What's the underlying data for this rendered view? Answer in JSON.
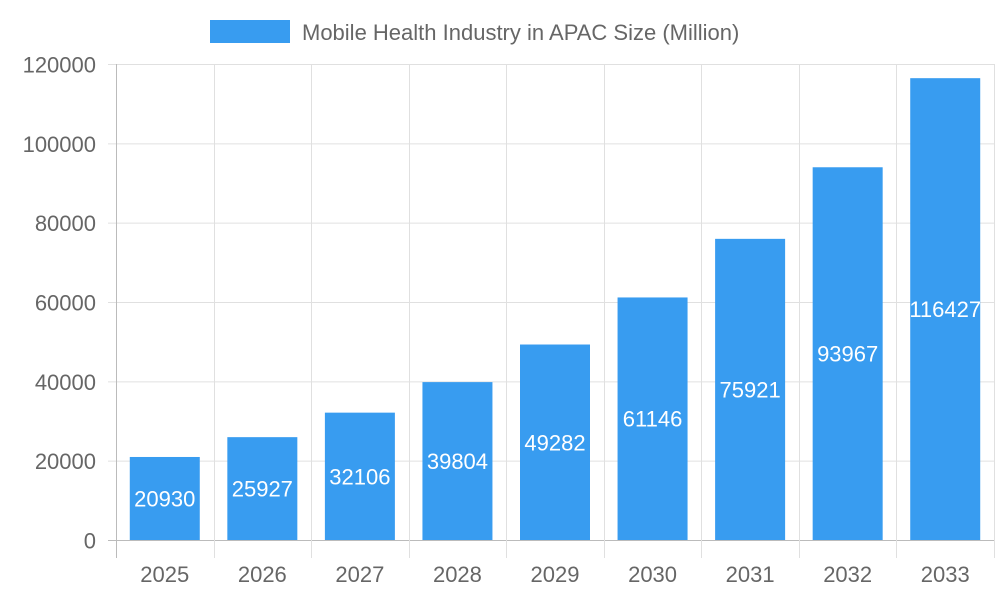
{
  "chart_data": {
    "type": "bar",
    "categories": [
      "2025",
      "2026",
      "2027",
      "2028",
      "2029",
      "2030",
      "2031",
      "2032",
      "2033"
    ],
    "series": [
      {
        "name": "Mobile Health Industry in APAC Size (Million)",
        "values": [
          20930,
          25927,
          32106,
          39804,
          49282,
          61146,
          75921,
          93967,
          116427
        ],
        "color": "#389cf0"
      }
    ],
    "ylim": [
      0,
      120000
    ],
    "yticks": [
      "0",
      "20000",
      "40000",
      "60000",
      "80000",
      "100000",
      "120000"
    ],
    "grid": true,
    "legend": "top",
    "data_labels": true
  }
}
